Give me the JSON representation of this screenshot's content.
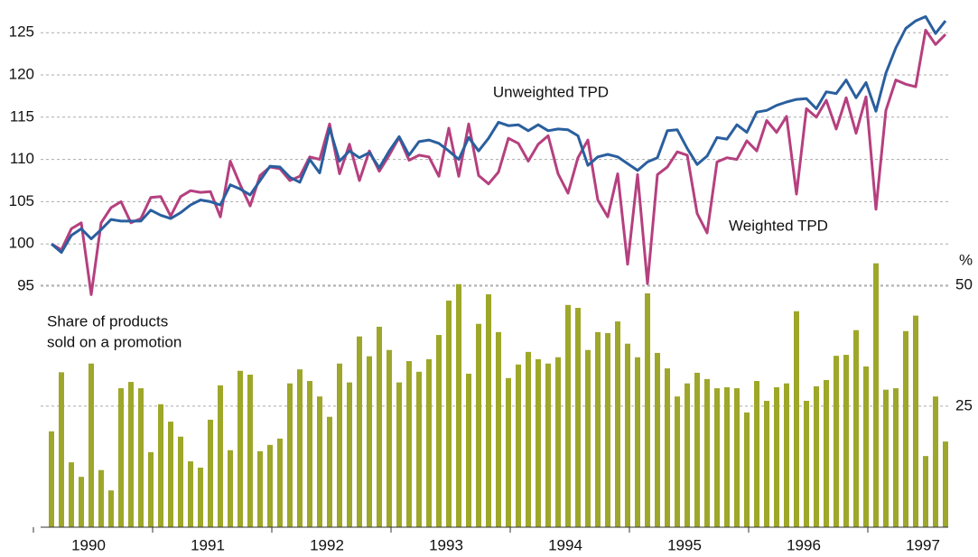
{
  "chart_data": {
    "type": "line-bar",
    "categories": [
      null,
      null,
      null,
      null,
      "1990",
      null,
      null,
      null,
      null,
      null,
      null,
      null,
      null,
      null,
      null,
      null,
      "1991",
      null,
      null,
      null,
      null,
      null,
      null,
      null,
      null,
      null,
      null,
      null,
      "1992",
      null,
      null,
      null,
      null,
      null,
      null,
      null,
      null,
      null,
      null,
      null,
      "1993",
      null,
      null,
      null,
      null,
      null,
      null,
      null,
      null,
      null,
      null,
      null,
      "1994",
      null,
      null,
      null,
      null,
      null,
      null,
      null,
      null,
      null,
      null,
      null,
      "1995",
      null,
      null,
      null,
      null,
      null,
      null,
      null,
      null,
      null,
      null,
      null,
      "1996",
      null,
      null,
      null,
      null,
      null,
      null,
      null,
      null,
      null,
      null,
      null,
      "1997",
      null,
      null
    ],
    "series": [
      {
        "name": "Unweighted TPD",
        "color": "#2a5f9e",
        "kind": "line",
        "values": [
          100,
          99,
          101,
          101.8,
          100.6,
          101.7,
          102.9,
          102.7,
          102.7,
          102.7,
          104.0,
          103.4,
          103.0,
          103.7,
          104.6,
          105.2,
          105.0,
          104.6,
          107.0,
          106.5,
          105.8,
          107.5,
          109.2,
          109.1,
          107.9,
          107.3,
          110.0,
          108.4,
          113.7,
          109.8,
          111.0,
          110.2,
          110.8,
          109.0,
          111.0,
          112.7,
          110.5,
          112.1,
          112.3,
          111.9,
          111.0,
          110.0,
          112.6,
          111.0,
          112.5,
          114.4,
          114.0,
          114.1,
          113.4,
          114.1,
          113.4,
          113.6,
          113.5,
          112.8,
          109.3,
          110.3,
          110.6,
          110.3,
          109.5,
          108.7,
          109.7,
          110.2,
          113.4,
          113.5,
          111.3,
          109.4,
          110.4,
          112.6,
          112.4,
          114.1,
          113.2,
          115.6,
          115.8,
          116.4,
          116.8,
          117.1,
          117.2,
          116.0,
          118.0,
          117.8,
          119.4,
          117.3,
          119.1,
          115.7,
          120.2,
          123.2,
          125.5,
          126.4,
          126.9,
          124.9,
          126.4
        ]
      },
      {
        "name": "Weighted TPD",
        "color": "#b5407f",
        "kind": "line",
        "values": [
          100,
          99.3,
          101.8,
          102.5,
          94.0,
          102.5,
          104.3,
          105.0,
          102.5,
          103.0,
          105.5,
          105.6,
          103.3,
          105.6,
          106.3,
          106.1,
          106.2,
          103.2,
          109.8,
          107.0,
          104.5,
          108.1,
          109.1,
          108.9,
          107.5,
          108.0,
          110.3,
          110.0,
          114.2,
          108.3,
          111.8,
          107.5,
          111.0,
          108.6,
          110.5,
          112.6,
          109.9,
          110.5,
          110.3,
          108.0,
          113.7,
          108.0,
          114.2,
          108.1,
          107.1,
          108.5,
          112.5,
          111.9,
          109.8,
          111.8,
          112.8,
          108.3,
          106.0,
          110.2,
          112.3,
          105.2,
          103.2,
          108.3,
          97.6,
          108.2,
          95.3,
          108.2,
          109.1,
          110.9,
          110.5,
          103.6,
          101.3,
          109.7,
          110.2,
          110.0,
          112.2,
          111.0,
          114.6,
          113.2,
          115.1,
          105.9,
          116.0,
          115.0,
          117.0,
          113.6,
          117.3,
          113.1,
          117.4,
          104.1,
          115.8,
          119.4,
          118.9,
          118.6,
          125.3,
          123.6,
          124.8
        ]
      },
      {
        "name": "Share of products sold on a promotion",
        "color": "#9ea729",
        "kind": "bar",
        "axis": "y2",
        "values": [
          19.8,
          32,
          13.4,
          10.4,
          33.8,
          11.8,
          7.6,
          28.7,
          30,
          28.7,
          15.5,
          25.4,
          21.8,
          18.7,
          13.6,
          12.3,
          22.2,
          29.3,
          15.9,
          32.3,
          31.5,
          15.7,
          17,
          18.3,
          29.7,
          32.6,
          30.2,
          27,
          22.8,
          33.8,
          29.9,
          39.4,
          35.3,
          41.4,
          36.6,
          29.9,
          34.3,
          32.1,
          34.7,
          39.7,
          46.8,
          50.2,
          31.7,
          42,
          48.1,
          40.3,
          30.8,
          33.6,
          36.2,
          34.7,
          33.8,
          35.1,
          45.9,
          45.3,
          36.6,
          40.3,
          40.1,
          42.5,
          37.9,
          35.1,
          48.3,
          36,
          32.8,
          27,
          29.7,
          31.9,
          30.6,
          28.7,
          28.9,
          28.7,
          23.7,
          30.2,
          26.1,
          28.9,
          29.7,
          44.6,
          26.1,
          29.1,
          30.4,
          35.4,
          35.6,
          40.7,
          33.2,
          54.5,
          28.4,
          28.7,
          40.5,
          43.7,
          14.7,
          27,
          17.7
        ]
      }
    ],
    "share_label": [
      "Share of products",
      "sold on a promotion"
    ],
    "y2_label": "%",
    "ylim": [
      95,
      127
    ],
    "yticks": [
      95,
      100,
      105,
      110,
      115,
      120,
      125
    ],
    "y2lim": [
      0,
      55
    ],
    "y2ticks": [
      25,
      50
    ],
    "grid": true
  }
}
